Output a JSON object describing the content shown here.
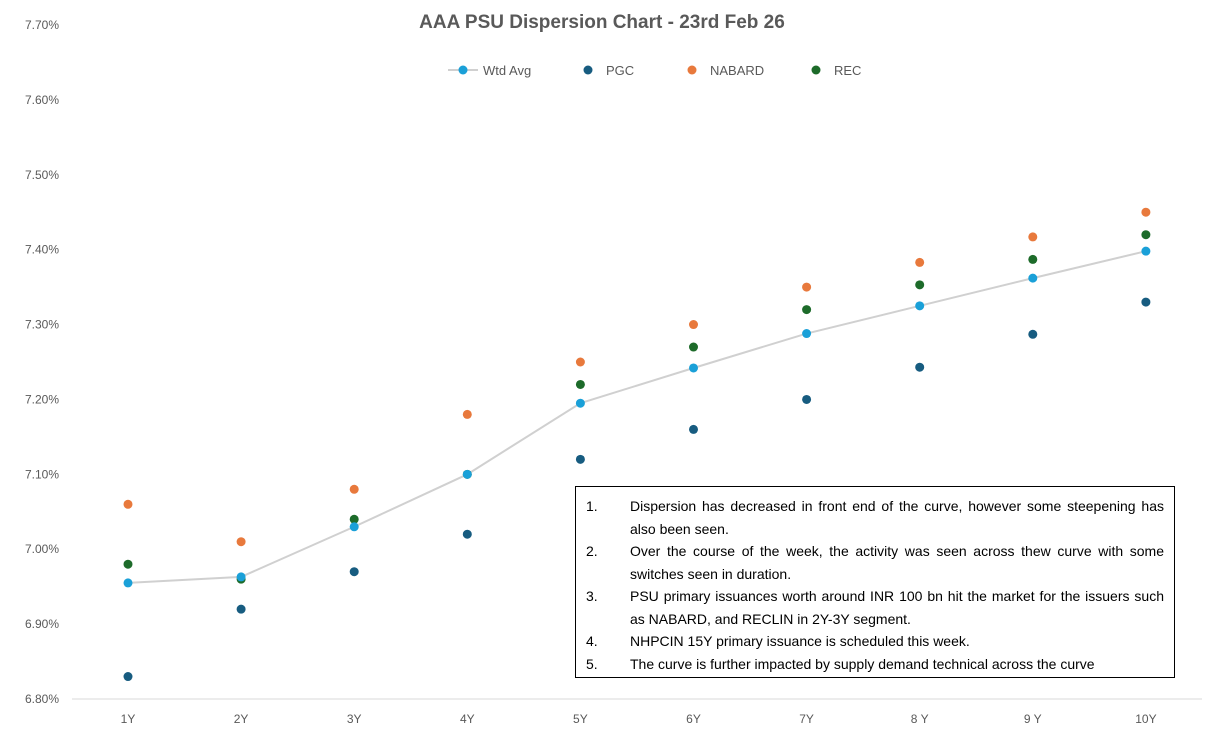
{
  "colors": {
    "wtd_avg": "#1aa0d8",
    "wtd_avg_line": "#d0d0d0",
    "pgc": "#175c80",
    "nabard": "#e8793c",
    "rec": "#1d6b2a",
    "axis": "#d9d9d9",
    "text": "#595959"
  },
  "chart_data": {
    "type": "scatter",
    "title": "AAA PSU Dispersion Chart - 23rd Feb 26",
    "xlabel": "",
    "ylabel": "",
    "categories": [
      "1Y",
      "2Y",
      "3Y",
      "4Y",
      "5Y",
      "6Y",
      "7Y",
      "8 Y",
      "9 Y",
      "10Y"
    ],
    "ylim": [
      6.8,
      7.7
    ],
    "ytick_values": [
      6.8,
      6.9,
      7.0,
      7.1,
      7.2,
      7.3,
      7.4,
      7.5,
      7.6,
      7.7
    ],
    "ytick_labels": [
      "6.80%",
      "6.90%",
      "7.00%",
      "7.10%",
      "7.20%",
      "7.30%",
      "7.40%",
      "7.50%",
      "7.60%",
      "7.70%"
    ],
    "legend_position": "top-center",
    "grid": false,
    "series": [
      {
        "name": "Wtd Avg",
        "style": "line-marker",
        "color_key": "wtd_avg",
        "values": [
          6.955,
          6.963,
          7.03,
          7.1,
          7.195,
          7.242,
          7.288,
          7.325,
          7.362,
          7.398
        ]
      },
      {
        "name": "PGC",
        "style": "marker",
        "color_key": "pgc",
        "values": [
          6.83,
          6.92,
          6.97,
          7.02,
          7.12,
          7.16,
          7.2,
          7.243,
          7.287,
          7.33
        ]
      },
      {
        "name": "NABARD",
        "style": "marker",
        "color_key": "nabard",
        "values": [
          7.06,
          7.01,
          7.08,
          7.18,
          7.25,
          7.3,
          7.35,
          7.383,
          7.417,
          7.45
        ]
      },
      {
        "name": "REC",
        "style": "marker",
        "color_key": "rec",
        "values": [
          6.98,
          6.96,
          7.04,
          7.1,
          7.22,
          7.27,
          7.32,
          7.353,
          7.387,
          7.42
        ]
      }
    ]
  },
  "notes": [
    {
      "num": "1.",
      "text": "Dispersion has decreased in front end of the curve, however some steepening has also been seen."
    },
    {
      "num": "2.",
      "text": "Over the course of the week, the activity was seen across thew curve with some switches seen in duration."
    },
    {
      "num": "3.",
      "text": "PSU primary issuances worth around INR 100 bn hit the market for the issuers such as NABARD, and RECLIN in 2Y-3Y segment."
    },
    {
      "num": "4.",
      "text": "NHPCIN 15Y primary issuance is scheduled this week."
    },
    {
      "num": "5.",
      "text": "The curve is further impacted by supply demand technical across the curve"
    }
  ]
}
